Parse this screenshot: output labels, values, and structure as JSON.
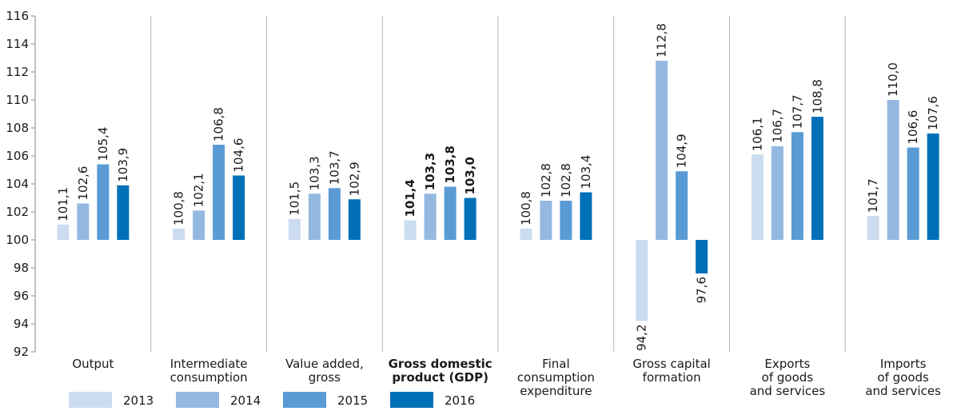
{
  "chart_data": {
    "type": "bar",
    "ylim": [
      92,
      116
    ],
    "yticks": [
      "92",
      "94",
      "96",
      "98",
      "100",
      "102",
      "104",
      "106",
      "108",
      "110",
      "112",
      "114",
      "116"
    ],
    "baseline": 100,
    "grid": "vertical separators between categories",
    "legend_position": "bottom-left",
    "categories": [
      {
        "lines": [
          "Output"
        ],
        "bold": false
      },
      {
        "lines": [
          "Intermediate",
          "consumption"
        ],
        "bold": false
      },
      {
        "lines": [
          "Value added,",
          "gross"
        ],
        "bold": false
      },
      {
        "lines": [
          "Gross domestic",
          "product (GDP)"
        ],
        "bold": true
      },
      {
        "lines": [
          "Final",
          "consumption",
          "expenditure"
        ],
        "bold": false
      },
      {
        "lines": [
          "Gross capital",
          "formation"
        ],
        "bold": false
      },
      {
        "lines": [
          "Exports",
          "of goods",
          "and services"
        ],
        "bold": false
      },
      {
        "lines": [
          "Imports",
          "of goods",
          "and services"
        ],
        "bold": false
      }
    ],
    "series": [
      {
        "name": "2013",
        "color": "#ccdcf0",
        "values": [
          101.1,
          100.8,
          101.5,
          101.4,
          100.8,
          94.2,
          106.1,
          101.7
        ],
        "labels": [
          "101,1",
          "100,8",
          "101,5",
          "101,4",
          "100,8",
          "94,2",
          "106,1",
          "101,7"
        ]
      },
      {
        "name": "2014",
        "color": "#94b9e1",
        "values": [
          102.6,
          102.1,
          103.3,
          103.3,
          102.8,
          112.8,
          106.7,
          110.0
        ],
        "labels": [
          "102,6",
          "102,1",
          "103,3",
          "103,3",
          "102,8",
          "112,8",
          "106,7",
          "110,0"
        ]
      },
      {
        "name": "2015",
        "color": "#5a9bd5",
        "values": [
          105.4,
          106.8,
          103.7,
          103.8,
          102.8,
          104.9,
          107.7,
          106.6
        ],
        "labels": [
          "105,4",
          "106,8",
          "103,7",
          "103,8",
          "102,8",
          "104,9",
          "107,7",
          "106,6"
        ]
      },
      {
        "name": "2016",
        "color": "#0070b8",
        "values": [
          103.9,
          104.6,
          102.9,
          103.0,
          103.4,
          97.6,
          108.8,
          107.6
        ],
        "labels": [
          "103,9",
          "104,6",
          "102,9",
          "103,0",
          "103,4",
          "97,6",
          "108,8",
          "107,6"
        ]
      }
    ]
  }
}
